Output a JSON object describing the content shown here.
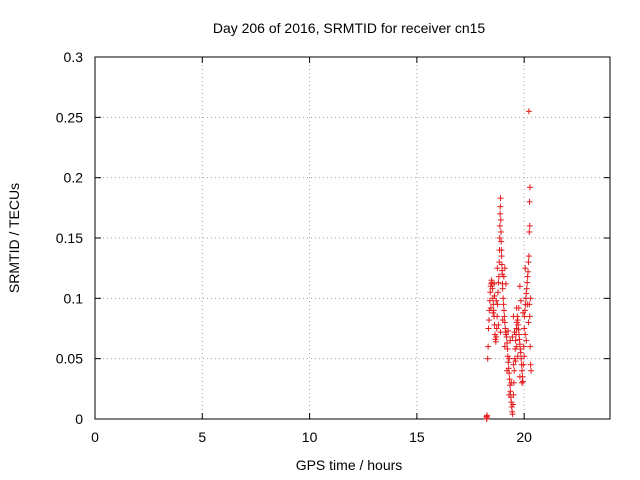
{
  "chart_data": {
    "type": "scatter",
    "title": "Day 206 of 2016, SRMTID for receiver cn15",
    "xlabel": "GPS time / hours",
    "ylabel": "SRMTID / TECUs",
    "xlim": [
      0,
      24
    ],
    "ylim": [
      0,
      0.3
    ],
    "xticks": [
      0,
      5,
      10,
      15,
      20
    ],
    "yticks": [
      0,
      0.05,
      0.1,
      0.15,
      0.2,
      0.25,
      0.3
    ],
    "grid": true,
    "marker": "+",
    "series_color": "#e41a1c",
    "points": [
      [
        18.25,
        0.0
      ],
      [
        18.25,
        0.002
      ],
      [
        18.26,
        0.001
      ],
      [
        18.27,
        0.003
      ],
      [
        18.3,
        0.05
      ],
      [
        18.32,
        0.06
      ],
      [
        18.34,
        0.075
      ],
      [
        18.36,
        0.082
      ],
      [
        18.38,
        0.09
      ],
      [
        18.4,
        0.098
      ],
      [
        18.42,
        0.105
      ],
      [
        18.44,
        0.11
      ],
      [
        18.46,
        0.112
      ],
      [
        18.48,
        0.115
      ],
      [
        18.5,
        0.113
      ],
      [
        18.52,
        0.108
      ],
      [
        18.54,
        0.1
      ],
      [
        18.56,
        0.095
      ],
      [
        18.58,
        0.09
      ],
      [
        18.6,
        0.085
      ],
      [
        18.62,
        0.078
      ],
      [
        18.64,
        0.07
      ],
      [
        18.66,
        0.066
      ],
      [
        18.68,
        0.064
      ],
      [
        18.7,
        0.068
      ],
      [
        18.72,
        0.075
      ],
      [
        18.74,
        0.085
      ],
      [
        18.76,
        0.095
      ],
      [
        18.78,
        0.105
      ],
      [
        18.8,
        0.113
      ],
      [
        18.82,
        0.118
      ],
      [
        18.84,
        0.13
      ],
      [
        18.85,
        0.14
      ],
      [
        18.86,
        0.15
      ],
      [
        18.87,
        0.16
      ],
      [
        18.88,
        0.17
      ],
      [
        18.89,
        0.176
      ],
      [
        18.9,
        0.183
      ],
      [
        18.91,
        0.165
      ],
      [
        18.92,
        0.155
      ],
      [
        18.93,
        0.147
      ],
      [
        18.94,
        0.14
      ],
      [
        18.95,
        0.135
      ],
      [
        18.96,
        0.128
      ],
      [
        18.97,
        0.123
      ],
      [
        18.98,
        0.12
      ],
      [
        18.99,
        0.112
      ],
      [
        19.0,
        0.108
      ],
      [
        19.02,
        0.1
      ],
      [
        19.04,
        0.095
      ],
      [
        19.06,
        0.09
      ],
      [
        19.08,
        0.085
      ],
      [
        19.1,
        0.08
      ],
      [
        19.12,
        0.075
      ],
      [
        19.14,
        0.072
      ],
      [
        19.16,
        0.07
      ],
      [
        19.18,
        0.068
      ],
      [
        19.2,
        0.063
      ],
      [
        19.22,
        0.058
      ],
      [
        19.24,
        0.052
      ],
      [
        19.26,
        0.047
      ],
      [
        19.28,
        0.042
      ],
      [
        19.3,
        0.038
      ],
      [
        19.32,
        0.033
      ],
      [
        19.34,
        0.028
      ],
      [
        19.36,
        0.023
      ],
      [
        19.38,
        0.018
      ],
      [
        19.4,
        0.014
      ],
      [
        19.42,
        0.01
      ],
      [
        19.44,
        0.006
      ],
      [
        19.46,
        0.004
      ],
      [
        19.48,
        0.012
      ],
      [
        19.5,
        0.02
      ],
      [
        19.52,
        0.03
      ],
      [
        19.54,
        0.04
      ],
      [
        19.56,
        0.05
      ],
      [
        19.58,
        0.058
      ],
      [
        19.6,
        0.065
      ],
      [
        19.62,
        0.07
      ],
      [
        19.64,
        0.075
      ],
      [
        19.66,
        0.08
      ],
      [
        19.68,
        0.085
      ],
      [
        19.7,
        0.082
      ],
      [
        19.72,
        0.078
      ],
      [
        19.74,
        0.074
      ],
      [
        19.76,
        0.07
      ],
      [
        19.78,
        0.066
      ],
      [
        19.8,
        0.062
      ],
      [
        19.82,
        0.058
      ],
      [
        19.84,
        0.055
      ],
      [
        19.86,
        0.05
      ],
      [
        19.88,
        0.045
      ],
      [
        19.9,
        0.04
      ],
      [
        19.92,
        0.035
      ],
      [
        19.94,
        0.031
      ],
      [
        19.96,
        0.045
      ],
      [
        19.98,
        0.06
      ],
      [
        20.0,
        0.075
      ],
      [
        20.02,
        0.085
      ],
      [
        20.04,
        0.09
      ],
      [
        20.06,
        0.095
      ],
      [
        20.08,
        0.1
      ],
      [
        20.1,
        0.104
      ],
      [
        20.12,
        0.108
      ],
      [
        20.14,
        0.113
      ],
      [
        20.16,
        0.118
      ],
      [
        20.18,
        0.122
      ],
      [
        20.2,
        0.13
      ],
      [
        20.22,
        0.135
      ],
      [
        20.24,
        0.095
      ],
      [
        20.26,
        0.085
      ],
      [
        20.28,
        0.06
      ],
      [
        20.3,
        0.045
      ],
      [
        20.32,
        0.04
      ],
      [
        20.24,
        0.155
      ],
      [
        20.26,
        0.16
      ],
      [
        20.25,
        0.18
      ],
      [
        20.27,
        0.192
      ],
      [
        20.22,
        0.255
      ],
      [
        18.45,
        0.092
      ],
      [
        18.55,
        0.088
      ],
      [
        18.62,
        0.102
      ],
      [
        18.7,
        0.098
      ],
      [
        18.8,
        0.078
      ],
      [
        18.9,
        0.072
      ],
      [
        19.05,
        0.118
      ],
      [
        19.1,
        0.125
      ],
      [
        19.15,
        0.112
      ],
      [
        19.25,
        0.073
      ],
      [
        19.35,
        0.065
      ],
      [
        19.45,
        0.068
      ],
      [
        19.55,
        0.072
      ],
      [
        19.65,
        0.06
      ],
      [
        19.75,
        0.092
      ],
      [
        19.85,
        0.098
      ],
      [
        19.95,
        0.088
      ],
      [
        20.05,
        0.07
      ],
      [
        19.2,
        0.04
      ],
      [
        19.3,
        0.02
      ],
      [
        19.4,
        0.03
      ],
      [
        19.5,
        0.045
      ],
      [
        19.6,
        0.048
      ],
      [
        19.7,
        0.052
      ],
      [
        19.8,
        0.035
      ],
      [
        19.9,
        0.03
      ],
      [
        20.0,
        0.052
      ],
      [
        20.1,
        0.065
      ],
      [
        20.2,
        0.08
      ],
      [
        20.3,
        0.1
      ],
      [
        18.6,
        0.112
      ],
      [
        18.75,
        0.125
      ],
      [
        19.0,
        0.082
      ],
      [
        19.1,
        0.06
      ],
      [
        19.3,
        0.05
      ],
      [
        19.5,
        0.085
      ],
      [
        19.65,
        0.092
      ],
      [
        19.8,
        0.11
      ],
      [
        20.05,
        0.125
      ],
      [
        20.15,
        0.095
      ]
    ]
  }
}
